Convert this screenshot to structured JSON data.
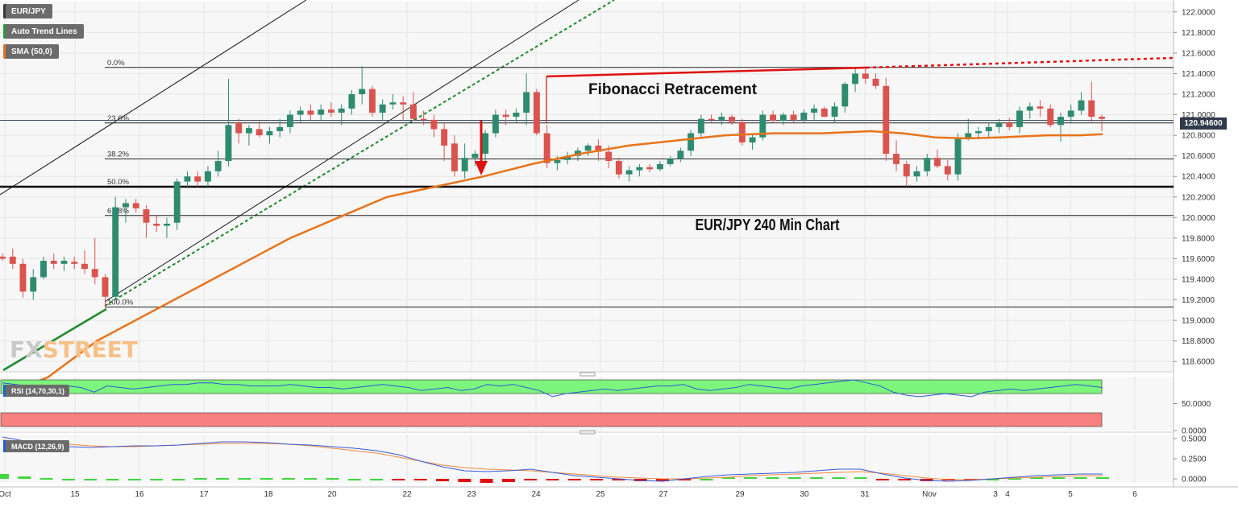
{
  "symbol": "EUR/JPY",
  "legend": [
    {
      "label": "EUR/JPY",
      "color": "#6b6b6b"
    },
    {
      "label": "Auto Trend Lines",
      "color": "#2e9a3c"
    },
    {
      "label": "SMA (50,0)",
      "color": "#e8731a"
    }
  ],
  "annotations": {
    "fib_title": "Fibonacci Retracement",
    "chart_caption": "EUR/JPY 240 Min Chart"
  },
  "watermark": {
    "part1": "FX",
    "part2": "STREET"
  },
  "current_price": "120.94600",
  "colors": {
    "up": "#2e8b6f",
    "down": "#d9534f",
    "sma": "#e8731a",
    "fib": "#000000",
    "rsi_upper_band": "#7cf57c",
    "rsi_lower_band": "#f98080",
    "macd_line": "#3a5bd9",
    "signal_line": "#f08a3c",
    "hist_pos": "#3fd63f",
    "hist_neg": "#e01010"
  },
  "chart_data": [
    {
      "type": "candlestick",
      "title": "EUR/JPY 240 Min Chart",
      "y_axis_ticks": [
        "122.0000",
        "121.8000",
        "121.6000",
        "121.4000",
        "121.2000",
        "121.0000",
        "120.8000",
        "120.6000",
        "120.4000",
        "120.2000",
        "120.0000",
        "119.8000",
        "119.6000",
        "119.4000",
        "119.2000",
        "119.0000",
        "118.8000",
        "118.6000"
      ],
      "ylim": [
        118.5,
        122.1
      ],
      "x_ticks": [
        "Oct",
        "15",
        "16",
        "17",
        "18",
        "20",
        "22",
        "23",
        "24",
        "25",
        "27",
        "29",
        "30",
        "31",
        "Nov",
        "3",
        "4",
        "5",
        "6"
      ],
      "candles": [
        [
          119.62,
          119.65,
          119.58,
          119.6
        ],
        [
          119.62,
          119.7,
          119.5,
          119.55
        ],
        [
          119.55,
          119.6,
          119.22,
          119.28
        ],
        [
          119.28,
          119.5,
          119.2,
          119.42
        ],
        [
          119.42,
          119.62,
          119.4,
          119.58
        ],
        [
          119.58,
          119.65,
          119.5,
          119.55
        ],
        [
          119.55,
          119.62,
          119.48,
          119.58
        ],
        [
          119.57,
          119.62,
          119.5,
          119.55
        ],
        [
          119.55,
          119.68,
          119.45,
          119.5
        ],
        [
          119.5,
          119.8,
          119.35,
          119.42
        ],
        [
          119.42,
          119.45,
          119.12,
          119.23
        ],
        [
          119.23,
          120.2,
          119.2,
          120.1
        ],
        [
          120.1,
          120.18,
          119.95,
          120.14
        ],
        [
          120.14,
          120.18,
          120.05,
          120.09
        ],
        [
          120.08,
          120.12,
          119.8,
          119.95
        ],
        [
          119.94,
          120.02,
          119.86,
          119.92
        ],
        [
          119.92,
          120.0,
          119.8,
          119.94
        ],
        [
          119.95,
          120.38,
          119.88,
          120.35
        ],
        [
          120.35,
          120.45,
          120.3,
          120.4
        ],
        [
          120.4,
          120.45,
          120.3,
          120.35
        ],
        [
          120.35,
          120.5,
          120.3,
          120.45
        ],
        [
          120.45,
          120.65,
          120.4,
          120.55
        ],
        [
          120.55,
          121.35,
          120.5,
          120.9
        ],
        [
          120.92,
          120.96,
          120.72,
          120.82
        ],
        [
          120.82,
          120.9,
          120.7,
          120.87
        ],
        [
          120.86,
          120.94,
          120.78,
          120.8
        ],
        [
          120.8,
          120.88,
          120.72,
          120.84
        ],
        [
          120.84,
          120.96,
          120.78,
          120.88
        ],
        [
          120.88,
          121.04,
          120.82,
          121.0
        ],
        [
          121.0,
          121.08,
          120.92,
          121.04
        ],
        [
          121.04,
          121.1,
          120.95,
          121.0
        ],
        [
          121.0,
          121.1,
          120.94,
          121.05
        ],
        [
          121.05,
          121.12,
          120.98,
          121.02
        ],
        [
          121.02,
          121.1,
          120.9,
          121.06
        ],
        [
          121.06,
          121.24,
          121.0,
          121.2
        ],
        [
          121.2,
          121.47,
          121.1,
          121.25
        ],
        [
          121.25,
          121.28,
          120.98,
          121.02
        ],
        [
          121.02,
          121.15,
          120.95,
          121.1
        ],
        [
          121.1,
          121.2,
          121.05,
          121.12
        ],
        [
          121.12,
          121.18,
          120.95,
          121.1
        ],
        [
          121.1,
          121.22,
          120.94,
          120.96
        ],
        [
          120.96,
          121.04,
          120.9,
          120.95
        ],
        [
          120.95,
          121.0,
          120.78,
          120.86
        ],
        [
          120.86,
          120.92,
          120.55,
          120.7
        ],
        [
          120.72,
          120.8,
          120.4,
          120.45
        ],
        [
          120.45,
          120.72,
          120.38,
          120.58
        ],
        [
          120.58,
          120.65,
          120.5,
          120.62
        ],
        [
          120.62,
          120.85,
          120.55,
          120.82
        ],
        [
          120.82,
          121.05,
          120.78,
          121.0
        ],
        [
          121.0,
          121.05,
          120.9,
          120.98
        ],
        [
          120.98,
          121.06,
          120.92,
          121.02
        ],
        [
          121.02,
          121.4,
          120.9,
          121.22
        ],
        [
          121.22,
          121.25,
          120.8,
          120.82
        ],
        [
          120.82,
          120.9,
          120.48,
          120.53
        ],
        [
          120.53,
          120.6,
          120.46,
          120.56
        ],
        [
          120.56,
          120.64,
          120.52,
          120.6
        ],
        [
          120.6,
          120.68,
          120.55,
          120.65
        ],
        [
          120.65,
          120.72,
          120.6,
          120.7
        ],
        [
          120.7,
          120.76,
          120.55,
          120.64
        ],
        [
          120.64,
          120.7,
          120.48,
          120.55
        ],
        [
          120.55,
          120.58,
          120.38,
          120.42
        ],
        [
          120.42,
          120.5,
          120.35,
          120.46
        ],
        [
          120.46,
          120.52,
          120.4,
          120.49
        ],
        [
          120.49,
          120.52,
          120.44,
          120.47
        ],
        [
          120.47,
          120.55,
          120.45,
          120.52
        ],
        [
          120.52,
          120.6,
          120.5,
          120.57
        ],
        [
          120.57,
          120.68,
          120.54,
          120.65
        ],
        [
          120.65,
          120.85,
          120.6,
          120.82
        ],
        [
          120.82,
          121.0,
          120.78,
          120.96
        ],
        [
          120.96,
          121.0,
          120.92,
          120.95
        ],
        [
          120.95,
          121.02,
          120.9,
          120.98
        ],
        [
          120.98,
          121.0,
          120.9,
          120.93
        ],
        [
          120.93,
          120.96,
          120.7,
          120.73
        ],
        [
          120.73,
          120.82,
          120.66,
          120.78
        ],
        [
          120.78,
          121.04,
          120.75,
          121.0
        ],
        [
          121.0,
          121.04,
          120.92,
          120.94
        ],
        [
          120.94,
          121.02,
          120.9,
          121.0
        ],
        [
          121.0,
          121.04,
          120.92,
          120.95
        ],
        [
          120.95,
          121.05,
          120.92,
          121.02
        ],
        [
          121.02,
          121.1,
          120.95,
          121.06
        ],
        [
          121.06,
          121.08,
          120.98,
          120.98
        ],
        [
          120.98,
          121.12,
          120.92,
          121.08
        ],
        [
          121.08,
          121.32,
          121.02,
          121.3
        ],
        [
          121.3,
          121.45,
          121.22,
          121.4
        ],
        [
          121.4,
          121.45,
          121.3,
          121.35
        ],
        [
          121.35,
          121.4,
          121.25,
          121.28
        ],
        [
          121.28,
          121.36,
          120.55,
          120.62
        ],
        [
          120.62,
          120.75,
          120.45,
          120.52
        ],
        [
          120.52,
          120.55,
          120.3,
          120.4
        ],
        [
          120.4,
          120.5,
          120.35,
          120.45
        ],
        [
          120.45,
          120.62,
          120.4,
          120.58
        ],
        [
          120.58,
          120.66,
          120.48,
          120.5
        ],
        [
          120.5,
          120.56,
          120.36,
          120.42
        ],
        [
          120.42,
          120.82,
          120.36,
          120.78
        ],
        [
          120.78,
          120.96,
          120.75,
          120.82
        ],
        [
          120.82,
          120.88,
          120.76,
          120.84
        ],
        [
          120.84,
          120.92,
          120.78,
          120.88
        ],
        [
          120.88,
          120.96,
          120.82,
          120.92
        ],
        [
          120.92,
          120.97,
          120.85,
          120.88
        ],
        [
          120.88,
          121.08,
          120.82,
          121.04
        ],
        [
          121.04,
          121.12,
          120.96,
          121.08
        ],
        [
          121.08,
          121.14,
          120.98,
          121.06
        ],
        [
          121.06,
          121.1,
          120.88,
          120.9
        ],
        [
          120.9,
          121.02,
          120.74,
          120.98
        ],
        [
          120.98,
          121.1,
          120.92,
          121.04
        ],
        [
          121.04,
          121.22,
          121.0,
          121.14
        ],
        [
          121.14,
          121.32,
          120.92,
          120.98
        ],
        [
          120.98,
          121.0,
          120.84,
          120.96
        ]
      ],
      "sma_50": [
        [
          30,
          118.35
        ],
        [
          60,
          118.45
        ],
        [
          120,
          118.8
        ],
        [
          180,
          119.05
        ],
        [
          240,
          119.3
        ],
        [
          300,
          119.55
        ],
        [
          360,
          119.8
        ],
        [
          420,
          120.0
        ],
        [
          480,
          120.2
        ],
        [
          540,
          120.3
        ],
        [
          600,
          120.4
        ],
        [
          660,
          120.52
        ],
        [
          720,
          120.62
        ],
        [
          780,
          120.7
        ],
        [
          840,
          120.75
        ],
        [
          900,
          120.8
        ],
        [
          960,
          120.82
        ],
        [
          1020,
          120.82
        ],
        [
          1080,
          120.84
        ],
        [
          1120,
          120.82
        ],
        [
          1160,
          120.78
        ],
        [
          1200,
          120.77
        ],
        [
          1240,
          120.78
        ],
        [
          1300,
          120.8
        ],
        [
          1340,
          120.8
        ],
        [
          1368,
          120.81
        ]
      ],
      "fibonacci": {
        "levels": [
          {
            "label": "0.0%",
            "price": 121.46
          },
          {
            "label": "23.6%",
            "price": 120.92
          },
          {
            "label": "38.2%",
            "price": 120.57
          },
          {
            "label": "50.0%",
            "price": 120.3
          },
          {
            "label": "61.8%",
            "price": 120.02
          },
          {
            "label": "100.0%",
            "price": 119.13
          }
        ]
      },
      "support_line": 120.3,
      "current_price_line": 120.946
    },
    {
      "type": "line",
      "title": "RSI (14,70,30,1)",
      "y_axis_ticks": [
        "50.0000",
        "0.0000"
      ],
      "ylim": [
        0,
        100
      ],
      "bands": {
        "upper": [
          70,
          100
        ],
        "lower": [
          0,
          30
        ]
      },
      "values": [
        58,
        57,
        56,
        55,
        54,
        56,
        55,
        52,
        56,
        55,
        54,
        55,
        56,
        57,
        57,
        58,
        58,
        57,
        57,
        56,
        56,
        56,
        57,
        56,
        55,
        55,
        54,
        55,
        56,
        57,
        56,
        55,
        53,
        54,
        55,
        53,
        54,
        57,
        56,
        57,
        55,
        53,
        49,
        51,
        52,
        53,
        54,
        53,
        54,
        55,
        56,
        56,
        57,
        54,
        53,
        54,
        55,
        57,
        56,
        55,
        54,
        56,
        57,
        58,
        59,
        60,
        58,
        56,
        52,
        50,
        49,
        50,
        51,
        50,
        49,
        52,
        53,
        54,
        53,
        54,
        55,
        56,
        57,
        56,
        55
      ]
    },
    {
      "type": "line",
      "title": "MACD (12,26,9)",
      "y_axis_ticks": [
        "0.5000",
        "0.2500",
        "0.0000"
      ],
      "ylim": [
        -0.05,
        0.55
      ],
      "macd": [
        0.52,
        0.47,
        0.43,
        0.4,
        0.39,
        0.4,
        0.41,
        0.41,
        0.42,
        0.44,
        0.46,
        0.46,
        0.45,
        0.43,
        0.42,
        0.4,
        0.38,
        0.35,
        0.3,
        0.22,
        0.15,
        0.1,
        0.09,
        0.1,
        0.12,
        0.08,
        0.04,
        0.02,
        0.0,
        -0.02,
        -0.03,
        0.0,
        0.03,
        0.05,
        0.06,
        0.07,
        0.08,
        0.1,
        0.12,
        0.12,
        0.06,
        0.01,
        -0.02,
        -0.03,
        -0.02,
        0.0,
        0.02,
        0.04,
        0.05,
        0.06,
        0.06
      ],
      "signal": [
        0.48,
        0.47,
        0.45,
        0.43,
        0.41,
        0.4,
        0.4,
        0.41,
        0.42,
        0.43,
        0.44,
        0.44,
        0.44,
        0.43,
        0.41,
        0.38,
        0.35,
        0.32,
        0.27,
        0.22,
        0.17,
        0.14,
        0.12,
        0.11,
        0.1,
        0.08,
        0.06,
        0.04,
        0.02,
        0.01,
        0.0,
        0.0,
        0.01,
        0.02,
        0.04,
        0.05,
        0.06,
        0.07,
        0.08,
        0.09,
        0.07,
        0.04,
        0.01,
        -0.01,
        -0.01,
        0.0,
        0.01,
        0.02,
        0.03,
        0.04,
        0.04
      ],
      "histogram": [
        0.06,
        0.03,
        0.01,
        0.0,
        0.0,
        0.0,
        0.0,
        0.0,
        0.0,
        0.01,
        0.01,
        0.01,
        0.01,
        0.01,
        0.01,
        0.01,
        0.0,
        0.0,
        -0.01,
        -0.02,
        -0.03,
        -0.04,
        -0.05,
        -0.04,
        -0.02,
        -0.01,
        -0.01,
        -0.01,
        -0.02,
        -0.03,
        -0.03,
        -0.02,
        0.0,
        0.02,
        0.02,
        0.02,
        0.02,
        0.02,
        0.02,
        0.02,
        -0.01,
        -0.02,
        -0.03,
        -0.02,
        -0.02,
        0.0,
        0.01,
        0.02,
        0.02,
        0.02,
        0.02
      ]
    }
  ]
}
